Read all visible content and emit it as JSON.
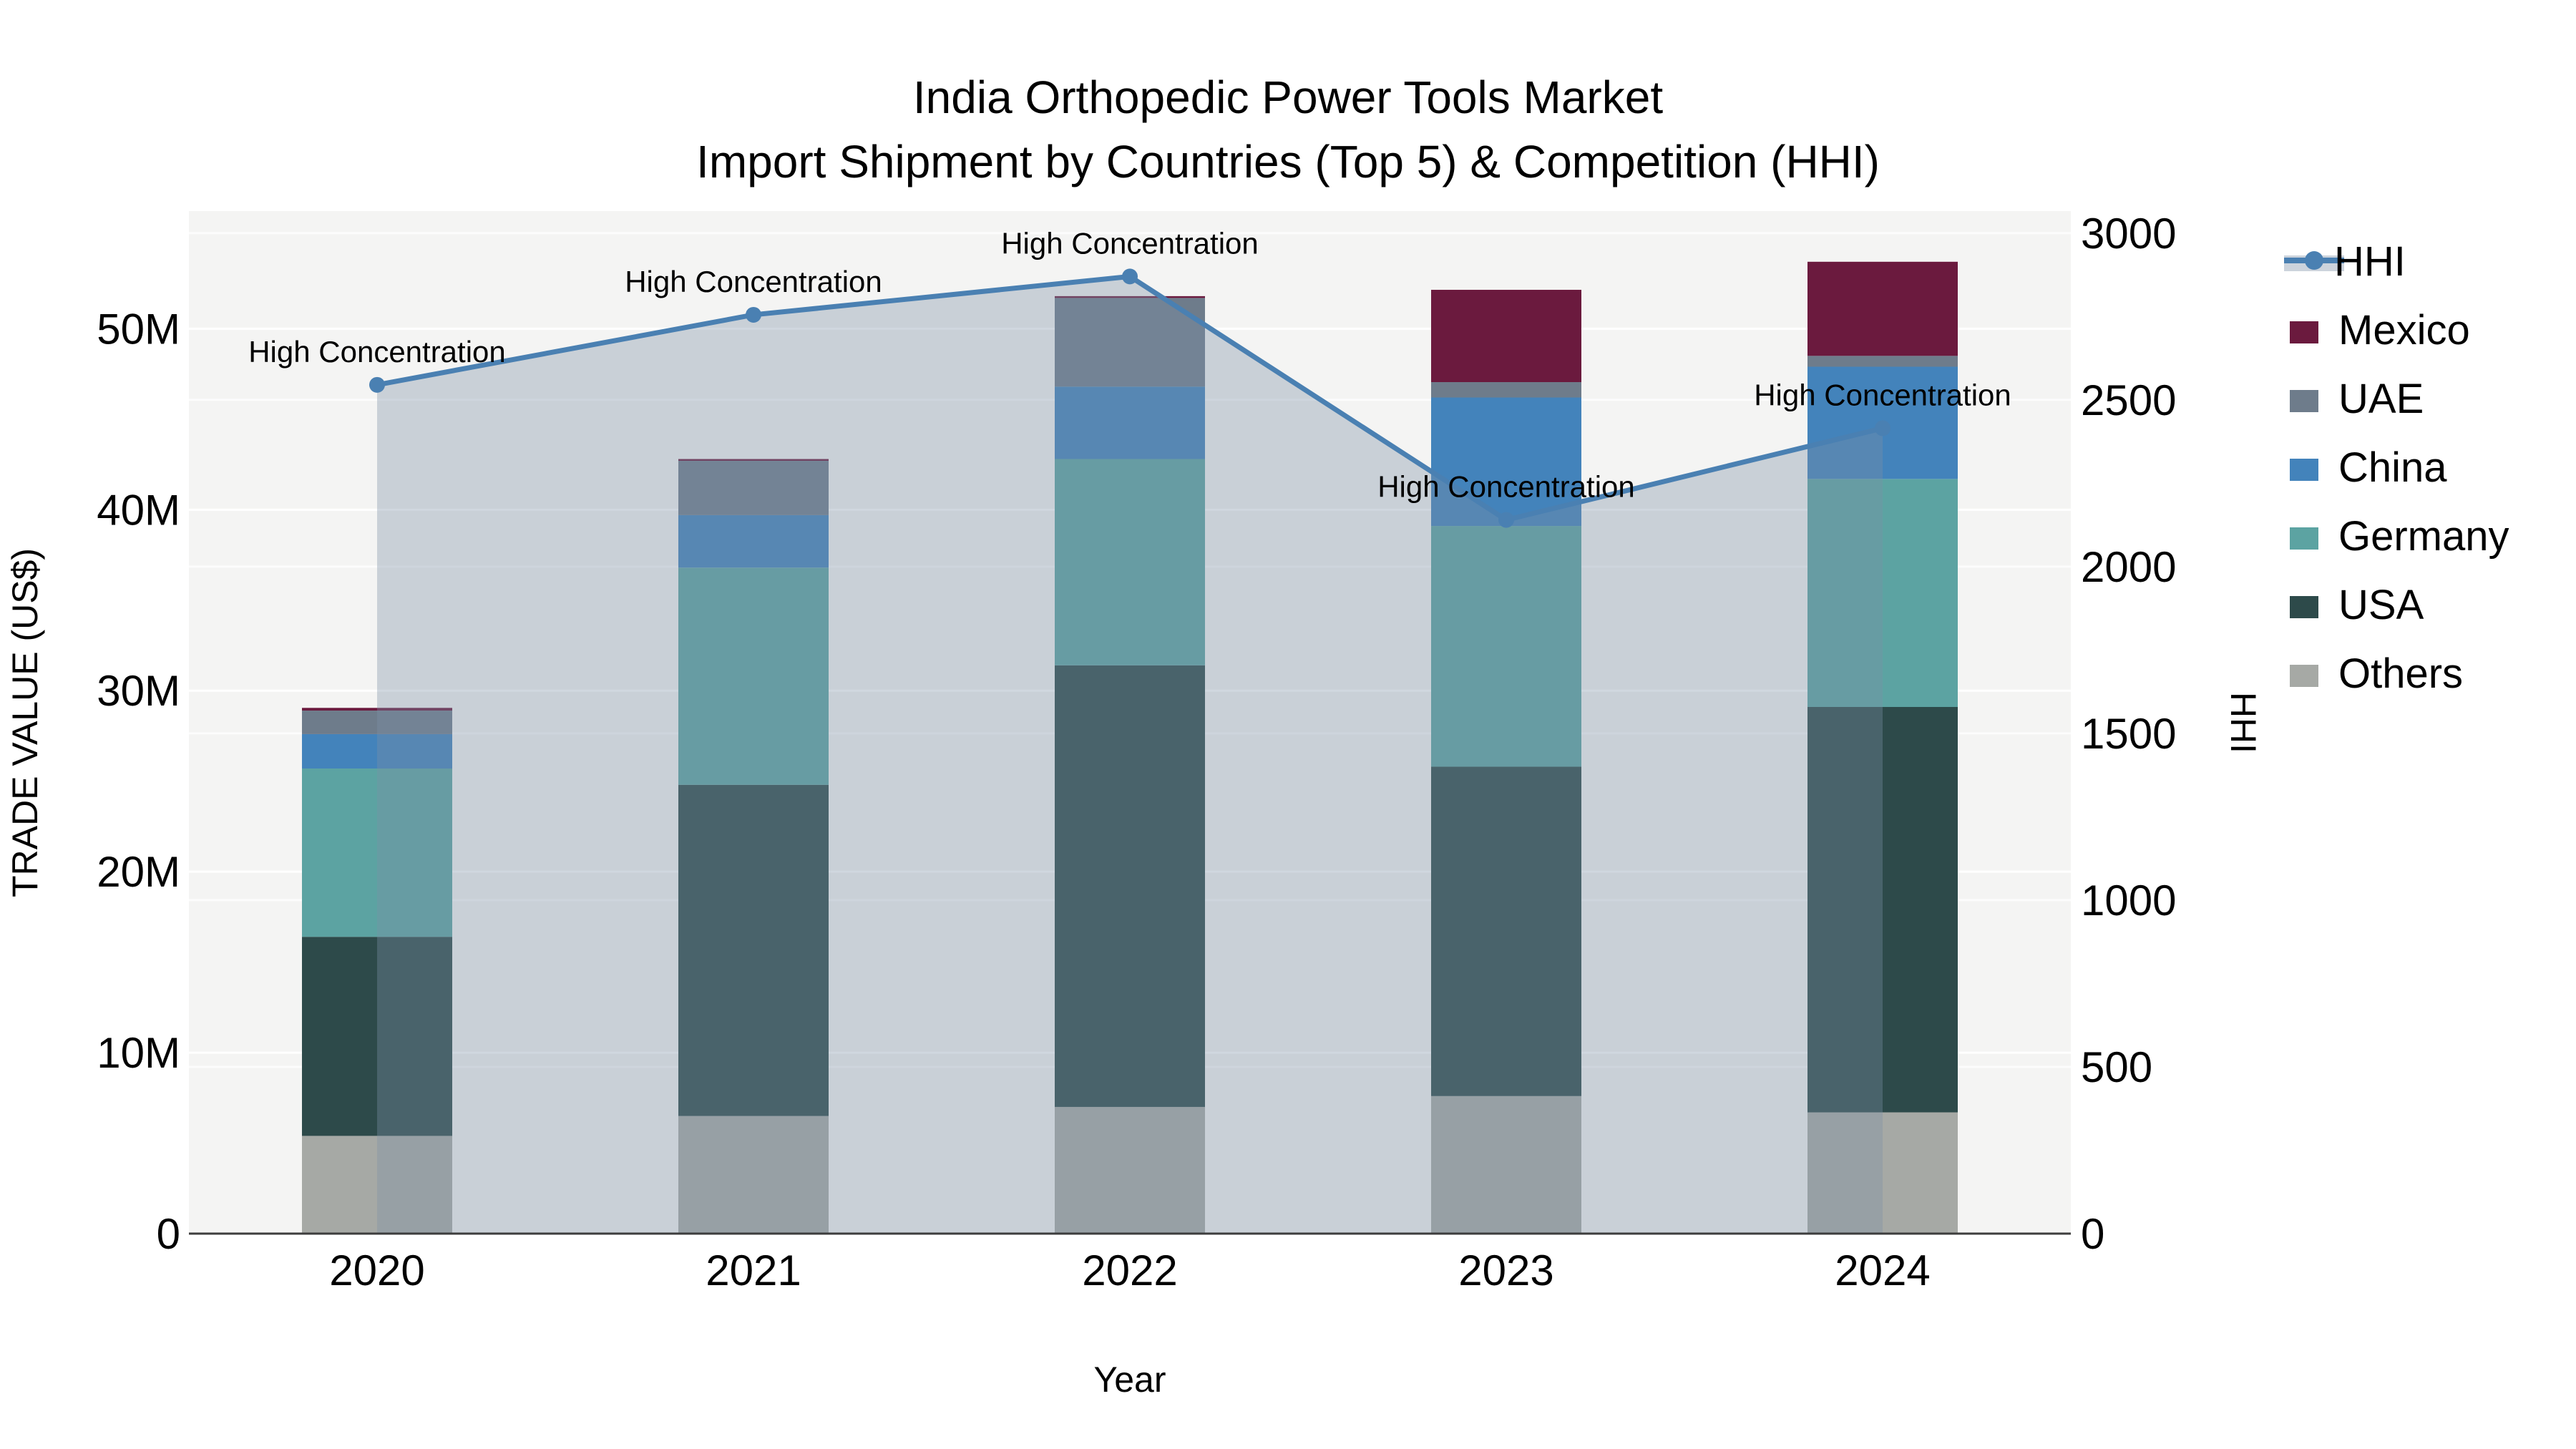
{
  "figure": {
    "title": "India Orthopedic Power Tools Market",
    "subtitle": "Import Shipment by Countries (Top 5) & Competition (HHI)",
    "background": "#ffffff",
    "plot_background": "#f4f4f3",
    "grid_color": "#ffffff",
    "spine_color": "#3d3d3d"
  },
  "chart_data": {
    "type": "bar",
    "subtype": "stacked-bars-with-line",
    "title": "India Orthopedic Power Tools Market",
    "subtitle": "Import Shipment by Countries (Top 5) & Competition (HHI)",
    "xlabel": "Year",
    "ylabel_left": "TRADE VALUE (US$)",
    "ylabel_right": "HHI",
    "categories": [
      "2020",
      "2021",
      "2022",
      "2023",
      "2024"
    ],
    "bar_value_unit": "million US$",
    "stack_order_bottom_to_top": [
      "Others",
      "USA",
      "Germany",
      "China",
      "UAE",
      "Mexico"
    ],
    "series": [
      {
        "name": "Others",
        "color": "#a6a9a5",
        "values": [
          5.4,
          6.5,
          7.0,
          7.6,
          6.7
        ]
      },
      {
        "name": "USA",
        "color": "#2d4a4a",
        "values": [
          11.0,
          18.3,
          24.4,
          18.2,
          22.4
        ]
      },
      {
        "name": "Germany",
        "color": "#5ca3a2",
        "values": [
          9.3,
          12.0,
          11.4,
          13.3,
          12.6
        ]
      },
      {
        "name": "China",
        "color": "#4383bb",
        "values": [
          1.9,
          2.9,
          4.0,
          7.1,
          6.2
        ]
      },
      {
        "name": "UAE",
        "color": "#6e7c8b",
        "values": [
          1.3,
          3.0,
          4.9,
          0.85,
          0.6
        ]
      },
      {
        "name": "Mexico",
        "color": "#6b1a3e",
        "values": [
          0.15,
          0.1,
          0.1,
          5.1,
          5.2
        ]
      }
    ],
    "bar_totals": [
      29.05,
      42.8,
      51.8,
      52.15,
      53.7
    ],
    "line": {
      "name": "HHI",
      "color": "#4a80b2",
      "area_fill_color": "rgba(125,143,166,0.36)",
      "values": [
        2545,
        2755,
        2870,
        2140,
        2415
      ],
      "annotation_text": "High Concentration",
      "annotations": [
        "High Concentration",
        "High Concentration",
        "High Concentration",
        "High Concentration",
        "High Concentration"
      ]
    },
    "axes": {
      "x": {
        "label": "Year",
        "ticks": [
          "2020",
          "2021",
          "2022",
          "2023",
          "2024"
        ]
      },
      "y_left": {
        "label": "TRADE VALUE (US$)",
        "range": [
          0,
          56.5
        ],
        "ticks": [
          {
            "v": 0,
            "label": "0"
          },
          {
            "v": 10,
            "label": "10M"
          },
          {
            "v": 20,
            "label": "20M"
          },
          {
            "v": 30,
            "label": "30M"
          },
          {
            "v": 40,
            "label": "40M"
          },
          {
            "v": 50,
            "label": "50M"
          }
        ]
      },
      "y_right": {
        "label": "HHI",
        "range": [
          0,
          3066
        ],
        "ticks": [
          {
            "v": 0,
            "label": "0"
          },
          {
            "v": 500,
            "label": "500"
          },
          {
            "v": 1000,
            "label": "1000"
          },
          {
            "v": 1500,
            "label": "1500"
          },
          {
            "v": 2000,
            "label": "2000"
          },
          {
            "v": 2500,
            "label": "2500"
          },
          {
            "v": 3000,
            "label": "3000"
          }
        ]
      },
      "grid": "horizontal-both-axes"
    },
    "legend": {
      "position": "right",
      "items": [
        {
          "name": "HHI",
          "type": "line",
          "color": "#4a80b2",
          "band_color": "#ccd3dc"
        },
        {
          "name": "Mexico",
          "type": "swatch",
          "color": "#6b1a3e"
        },
        {
          "name": "UAE",
          "type": "swatch",
          "color": "#6e7c8b"
        },
        {
          "name": "China",
          "type": "swatch",
          "color": "#4383bb"
        },
        {
          "name": "Germany",
          "type": "swatch",
          "color": "#5ca3a2"
        },
        {
          "name": "USA",
          "type": "swatch",
          "color": "#2d4a4a"
        },
        {
          "name": "Others",
          "type": "swatch",
          "color": "#a6a9a5"
        }
      ]
    }
  }
}
